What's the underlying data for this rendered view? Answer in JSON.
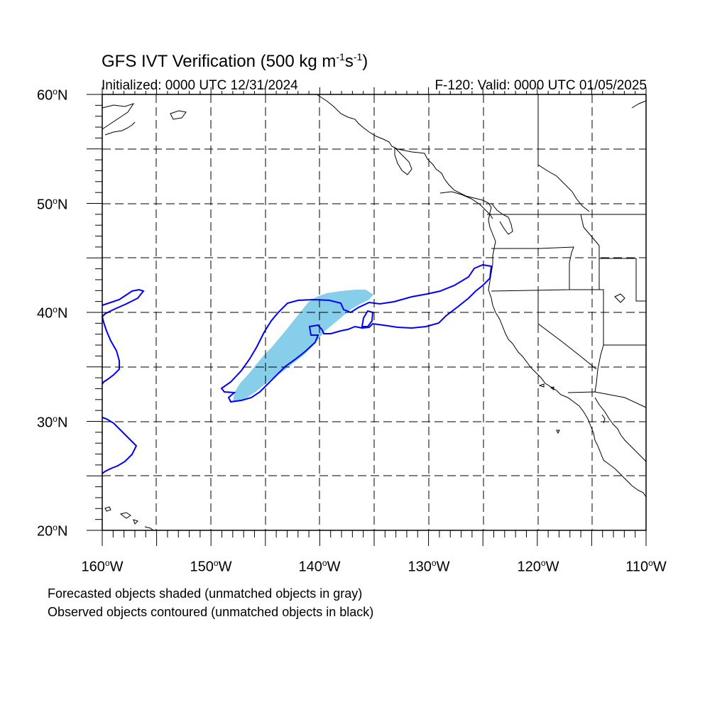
{
  "title": {
    "prefix": "GFS IVT Verification (500 kg m",
    "exp1": "-1",
    "mid": "s",
    "exp2": "-1",
    "suffix": ")"
  },
  "initialized": "Initialized: 0000 UTC 12/31/2024",
  "valid": "F-120: Valid: 0000 UTC 01/05/2025",
  "lat_labels": [
    {
      "value": "60",
      "suffix": "N"
    },
    {
      "value": "50",
      "suffix": "N"
    },
    {
      "value": "40",
      "suffix": "N"
    },
    {
      "value": "30",
      "suffix": "N"
    },
    {
      "value": "20",
      "suffix": "N"
    }
  ],
  "lon_labels": [
    {
      "value": "160",
      "suffix": "W"
    },
    {
      "value": "150",
      "suffix": "W"
    },
    {
      "value": "140",
      "suffix": "W"
    },
    {
      "value": "130",
      "suffix": "W"
    },
    {
      "value": "120",
      "suffix": "W"
    },
    {
      "value": "110",
      "suffix": "W"
    }
  ],
  "degree_symbol": "o",
  "footnotes": [
    "Forecasted objects shaded (unmatched objects in gray)",
    "Observed objects contoured (unmatched objects in black)"
  ],
  "colors": {
    "forecast_fill": "#87ceeb",
    "observed_contour": "#0000ff",
    "coastline": "#000000",
    "grid": "#000000"
  },
  "map": {
    "lon_range": [
      -160,
      -110
    ],
    "lat_range": [
      20,
      60
    ],
    "projection": "cylindrical-equidistant",
    "grid": true
  }
}
